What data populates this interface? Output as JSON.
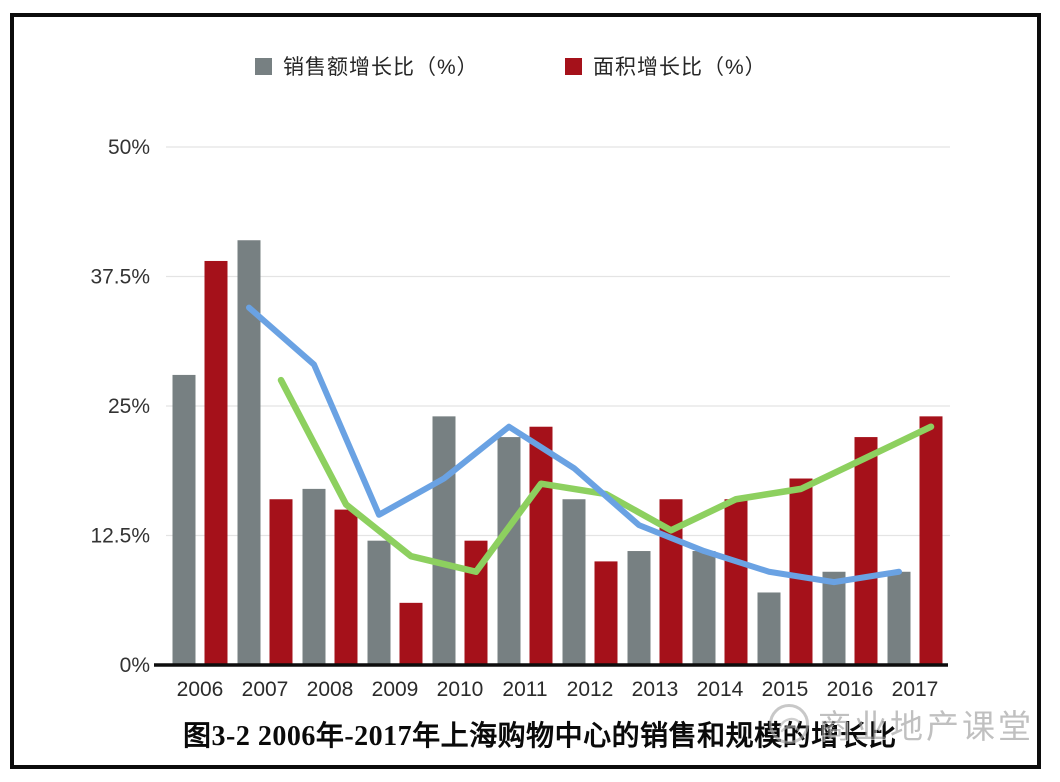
{
  "legend": {
    "items": [
      {
        "label": "销售额增长比（%）",
        "color": "#778082"
      },
      {
        "label": "面积增长比（%）",
        "color": "#a5111a"
      }
    ]
  },
  "caption": {
    "text": "图3-2 2006年-2017年上海购物中心的销售和规模的增长比"
  },
  "watermark": {
    "text": "商业地产课堂",
    "logo": "circle-logo",
    "color": "#9a9a9a"
  },
  "chart_data": {
    "type": "bar",
    "title": "图3-2 2006年-2017年上海购物中心的销售和规模的增长比",
    "categories": [
      "2006",
      "2007",
      "2008",
      "2009",
      "2010",
      "2011",
      "2012",
      "2013",
      "2014",
      "2015",
      "2016",
      "2017"
    ],
    "series": [
      {
        "name": "销售额增长比（%）",
        "type": "bar",
        "color": "#778082",
        "values": [
          28,
          41,
          17,
          12,
          24,
          22,
          16,
          11,
          11,
          7,
          9,
          9
        ]
      },
      {
        "name": "面积增长比（%）",
        "type": "bar",
        "color": "#a5111a",
        "values": [
          39,
          16,
          15,
          6,
          12,
          23,
          10,
          16,
          16,
          18,
          22,
          24
        ]
      },
      {
        "name": "trend-line-blue",
        "type": "line",
        "color": "#6aa2e3",
        "start_index": 1,
        "values": [
          34.5,
          29,
          14.5,
          18,
          23,
          19,
          13.5,
          11,
          9,
          8,
          9
        ]
      },
      {
        "name": "trend-line-green",
        "type": "line",
        "color": "#8dd05f",
        "start_index": 1,
        "values": [
          27.5,
          15.5,
          10.5,
          9,
          17.5,
          16.5,
          13,
          16,
          17,
          20,
          23
        ]
      }
    ],
    "xlabel": "",
    "ylabel": "",
    "ylim": [
      0,
      50
    ],
    "y_ticks": [
      "0%",
      "12.5%",
      "25%",
      "37.5%",
      "50%"
    ],
    "y_tick_values": [
      0,
      12.5,
      25,
      37.5,
      50
    ],
    "grid": true,
    "legend_position": "top"
  }
}
